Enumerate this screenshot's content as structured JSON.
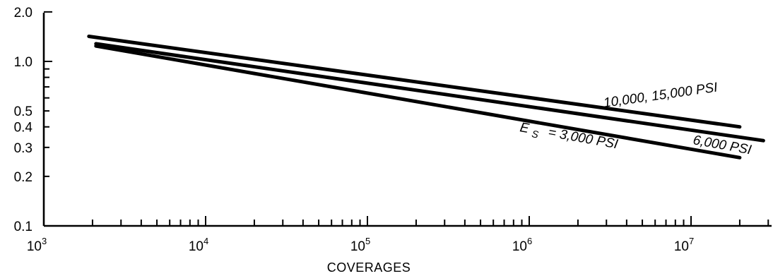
{
  "chart_data": {
    "type": "line",
    "xlabel": "COVERAGES",
    "ylabel": "",
    "x_scale": "log",
    "y_scale": "log",
    "xlim": [
      1000,
      30000000
    ],
    "ylim": [
      0.1,
      2.0
    ],
    "grid": false,
    "x_ticks": [
      {
        "value": 1000,
        "base": "10",
        "exp": "3"
      },
      {
        "value": 10000,
        "base": "10",
        "exp": "4"
      },
      {
        "value": 100000,
        "base": "10",
        "exp": "5"
      },
      {
        "value": 1000000,
        "base": "10",
        "exp": "6"
      },
      {
        "value": 10000000,
        "base": "10",
        "exp": "7"
      }
    ],
    "y_ticks": [
      {
        "value": 2.0,
        "label": "2.0"
      },
      {
        "value": 1.0,
        "label": "1.0"
      },
      {
        "value": 0.5,
        "label": "0.5"
      },
      {
        "value": 0.4,
        "label": "0.4"
      },
      {
        "value": 0.3,
        "label": "0.3"
      },
      {
        "value": 0.2,
        "label": "0.2"
      },
      {
        "value": 0.1,
        "label": "0.1"
      }
    ],
    "series": [
      {
        "name": "10,000, 15,000 PSI",
        "x": [
          1900,
          20000000
        ],
        "y": [
          1.42,
          0.4
        ]
      },
      {
        "name": "6,000 PSI",
        "x": [
          2100,
          28000000
        ],
        "y": [
          1.28,
          0.33
        ]
      },
      {
        "name": "E_s = 3,000 PSI",
        "x": [
          2100,
          20000000
        ],
        "y": [
          1.24,
          0.26
        ]
      }
    ],
    "annotations": {
      "series_1_text": "10,000, 15,000 PSI",
      "series_2_text": "6,000 PSI",
      "series_3_prefix": "E",
      "series_3_subscript": "S",
      "series_3_suffix": "= 3,000 PSI"
    }
  }
}
